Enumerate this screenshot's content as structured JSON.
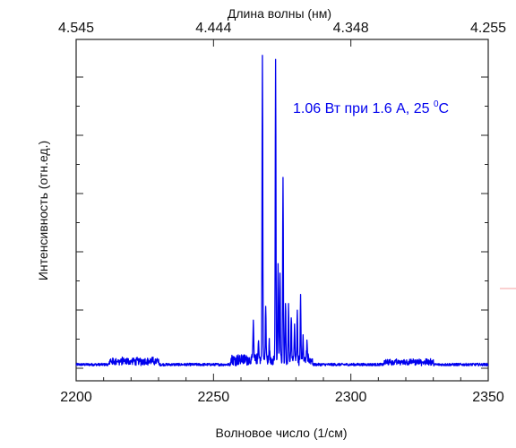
{
  "chart_data": {
    "type": "line",
    "title": "",
    "xlabel": "Волновое число (1/см)",
    "ylabel": "Интенсивность (отн.ед.)",
    "x2label": "Длина волны (нм)",
    "xlim": [
      2200,
      2350
    ],
    "ylim": [
      0,
      1.05
    ],
    "xticks": [
      2200,
      2250,
      2300,
      2350
    ],
    "xtick_labels": [
      "2200",
      "2250",
      "2300",
      "2350"
    ],
    "x2ticks": [
      2200,
      2250,
      2300,
      2350
    ],
    "x2tick_labels": [
      "4.545",
      "4.444",
      "4.348",
      "4.255"
    ],
    "grid": false,
    "line_color": "#0000ee",
    "annotation": {
      "text": "1.06 Вт при 1.6 A, 25 ",
      "superscript": "0",
      "suffix": "C",
      "color": "#0000ee"
    },
    "series": [
      {
        "baseline": 0.05,
        "noise_ranges": [
          [
            2212,
            2230,
            0.02
          ],
          [
            2256,
            2286,
            0.03
          ],
          [
            2312,
            2330,
            0.015
          ]
        ],
        "peaks": [
          {
            "x": 2264.5,
            "y": 0.17
          },
          {
            "x": 2266.4,
            "y": 0.12
          },
          {
            "x": 2267.8,
            "y": 1.0
          },
          {
            "x": 2269.0,
            "y": 0.22
          },
          {
            "x": 2270.3,
            "y": 0.1
          },
          {
            "x": 2272.6,
            "y": 0.98
          },
          {
            "x": 2273.5,
            "y": 0.35
          },
          {
            "x": 2274.2,
            "y": 0.32
          },
          {
            "x": 2275.3,
            "y": 0.6
          },
          {
            "x": 2276.2,
            "y": 0.23
          },
          {
            "x": 2277.3,
            "y": 0.21
          },
          {
            "x": 2278.3,
            "y": 0.19
          },
          {
            "x": 2279.5,
            "y": 0.16
          },
          {
            "x": 2280.5,
            "y": 0.19
          },
          {
            "x": 2281.7,
            "y": 0.25
          },
          {
            "x": 2282.6,
            "y": 0.13
          },
          {
            "x": 2284.0,
            "y": 0.1
          }
        ]
      }
    ]
  }
}
